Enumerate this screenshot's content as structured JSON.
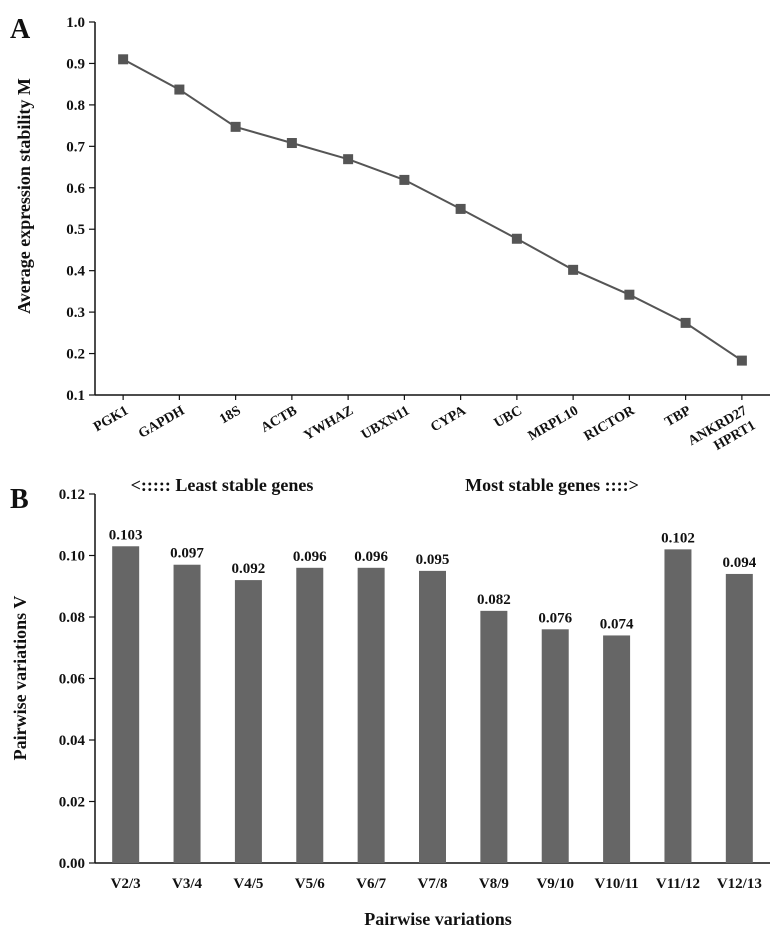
{
  "colors": {
    "line": "#555555",
    "marker": "#555555",
    "bar": "#666666",
    "axis": "#111111"
  },
  "chart_data": [
    {
      "panel": "A",
      "type": "line",
      "ylabel": "Average expression stability M",
      "ylim": [
        0.1,
        1.0
      ],
      "yticks": [
        "0.1",
        "0.2",
        "0.3",
        "0.4",
        "0.5",
        "0.6",
        "0.7",
        "0.8",
        "0.9",
        "1.0"
      ],
      "categories": [
        "PGK1",
        "GAPDH",
        "18S",
        "ACTB",
        "YWHAZ",
        "UBXN11",
        "CYPA",
        "UBC",
        "MRPL10",
        "RICTOR",
        "TBP",
        "ANKRD27 HPRT1"
      ],
      "values": [
        0.91,
        0.837,
        0.747,
        0.708,
        0.669,
        0.619,
        0.549,
        0.477,
        0.402,
        0.342,
        0.274,
        0.183
      ],
      "last_category_lines": [
        "ANKRD27",
        "HPRT1"
      ],
      "annotations": {
        "left": "<::::: Least stable genes",
        "right": "Most stable genes ::::>"
      },
      "marker": "square",
      "grid": false
    },
    {
      "panel": "B",
      "type": "bar",
      "xlabel": "Pairwise variations",
      "ylabel": "Pairwise variations V",
      "ylim": [
        0.0,
        0.12
      ],
      "yticks": [
        "0.00",
        "0.02",
        "0.04",
        "0.06",
        "0.08",
        "0.10",
        "0.12"
      ],
      "categories": [
        "V2/3",
        "V3/4",
        "V4/5",
        "V5/6",
        "V6/7",
        "V7/8",
        "V8/9",
        "V9/10",
        "V10/11",
        "V11/12",
        "V12/13"
      ],
      "values": [
        0.103,
        0.097,
        0.092,
        0.096,
        0.096,
        0.095,
        0.082,
        0.076,
        0.074,
        0.102,
        0.094
      ],
      "data_labels": [
        "0.103",
        "0.097",
        "0.092",
        "0.096",
        "0.096",
        "0.095",
        "0.082",
        "0.076",
        "0.074",
        "0.102",
        "0.094"
      ],
      "grid": false
    }
  ]
}
